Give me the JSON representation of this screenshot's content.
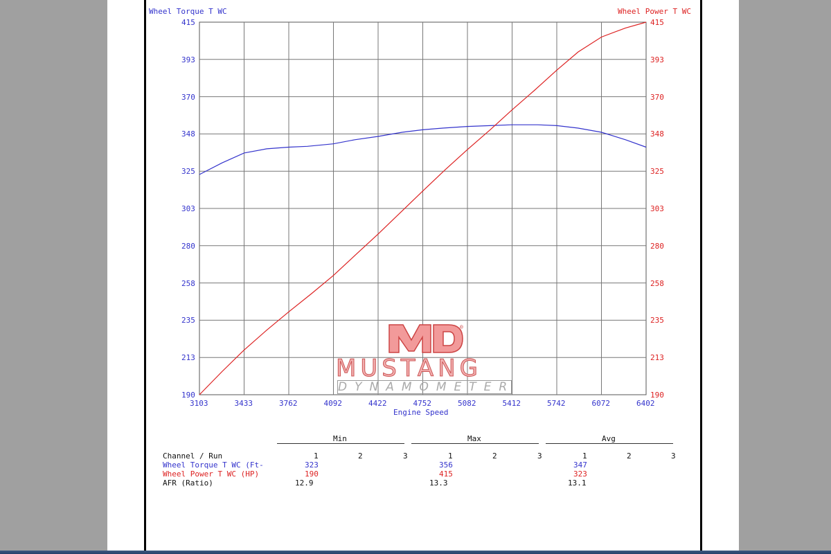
{
  "chart_data": {
    "type": "line",
    "left_axis_title": "Wheel Torque T WC",
    "right_axis_title": "Wheel Power T WC",
    "xlabel": "Engine Speed",
    "x_ticks": [
      "3103",
      "3433",
      "3762",
      "4092",
      "4422",
      "4752",
      "5082",
      "5412",
      "5742",
      "6072",
      "6402"
    ],
    "y_ticks": [
      "415",
      "393",
      "370",
      "348",
      "325",
      "303",
      "280",
      "258",
      "235",
      "213",
      "190"
    ],
    "xlim": [
      3103,
      6402
    ],
    "ylim": [
      190,
      415
    ],
    "grid": true,
    "series": [
      {
        "name": "Wheel Torque T WC (Ft-",
        "color": "#3333cc",
        "points": [
          [
            3103,
            323
          ],
          [
            3270,
            330
          ],
          [
            3433,
            336
          ],
          [
            3600,
            338.5
          ],
          [
            3762,
            339.5
          ],
          [
            3900,
            340
          ],
          [
            4092,
            341.5
          ],
          [
            4250,
            344
          ],
          [
            4422,
            346
          ],
          [
            4600,
            348.5
          ],
          [
            4752,
            350
          ],
          [
            4900,
            351
          ],
          [
            5082,
            352
          ],
          [
            5250,
            352.5
          ],
          [
            5412,
            353
          ],
          [
            5600,
            353
          ],
          [
            5742,
            352.5
          ],
          [
            5900,
            351
          ],
          [
            6072,
            348.5
          ],
          [
            6250,
            344
          ],
          [
            6402,
            339.5
          ]
        ]
      },
      {
        "name": "Wheel Power T WC (HP)",
        "color": "#dd2222",
        "points": [
          [
            3103,
            190
          ],
          [
            3270,
            204
          ],
          [
            3433,
            217
          ],
          [
            3600,
            229
          ],
          [
            3762,
            240
          ],
          [
            3930,
            251
          ],
          [
            4092,
            262
          ],
          [
            4250,
            274
          ],
          [
            4422,
            287
          ],
          [
            4600,
            301
          ],
          [
            4752,
            313
          ],
          [
            4920,
            326
          ],
          [
            5082,
            338
          ],
          [
            5250,
            350
          ],
          [
            5412,
            362
          ],
          [
            5580,
            374
          ],
          [
            5742,
            386
          ],
          [
            5900,
            397
          ],
          [
            6072,
            406
          ],
          [
            6250,
            411.5
          ],
          [
            6402,
            415
          ]
        ]
      }
    ]
  },
  "logo": {
    "mark": "MD",
    "registered": "®",
    "word": "MUSTANG",
    "sub": "DYNAMOMETER"
  },
  "table": {
    "groups": [
      "Min",
      "Max",
      "Avg"
    ],
    "header_label": "Channel / Run",
    "runs": [
      "1",
      "2",
      "3"
    ],
    "rows": [
      {
        "label": "Wheel Torque T WC (Ft-",
        "color": "#3333cc",
        "min": "323",
        "max": "356",
        "avg": "347"
      },
      {
        "label": "Wheel Power T WC (HP)",
        "color": "#dd2222",
        "min": "190",
        "max": "415",
        "avg": "323"
      },
      {
        "label": "AFR (Ratio)",
        "color": "#111111",
        "min": "12.9",
        "max": "13.3",
        "avg": "13.1"
      }
    ]
  }
}
